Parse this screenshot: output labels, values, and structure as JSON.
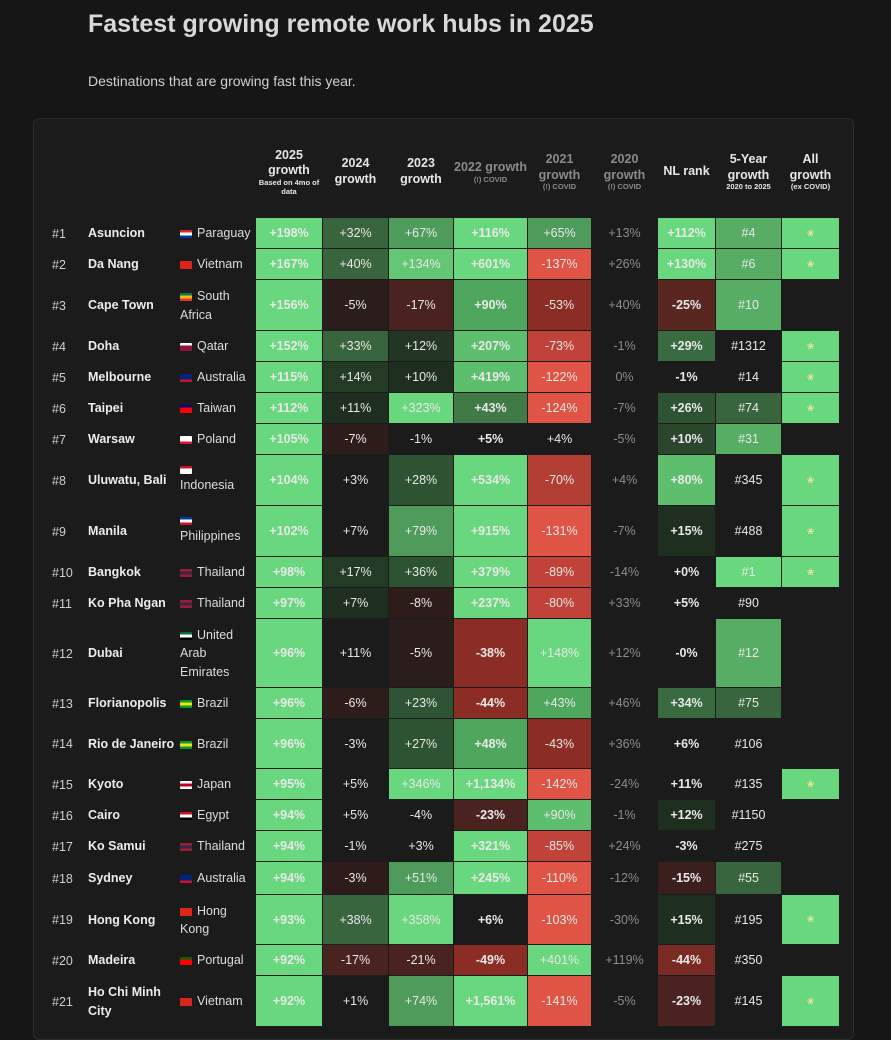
{
  "title": "Fastest growing remote work hubs in 2025",
  "subtitle": "Destinations that are growing fast this year.",
  "columns": [
    {
      "label": "2025 growth",
      "sub": "Based on 4mo of data",
      "dim": false
    },
    {
      "label": "2024 growth",
      "sub": "",
      "dim": false
    },
    {
      "label": "2023 growth",
      "sub": "",
      "dim": false
    },
    {
      "label": "2022 growth",
      "sub": "(!) COVID",
      "dim": true
    },
    {
      "label": "2021 growth",
      "sub": "(!) COVID",
      "dim": true
    },
    {
      "label": "2020 growth",
      "sub": "(!) COVID",
      "dim": true
    },
    {
      "label": "NL rank",
      "sub": "",
      "dim": false
    },
    {
      "label": "5-Year growth",
      "sub": "2020 to 2025",
      "dim": false
    },
    {
      "label": "All growth",
      "sub": "(ex COVID)",
      "dim": false
    }
  ],
  "rows": [
    {
      "rank": "#1",
      "city": "Asuncion",
      "country": "Paraguay",
      "flag": [
        "#d52b1e",
        "#ffffff",
        "#0038a8"
      ],
      "flag_top": false,
      "v": [
        "+198%",
        "+32%",
        "+67%",
        "+116%",
        "+65%",
        "+13%",
        "+112%",
        "#4"
      ],
      "badge": true
    },
    {
      "rank": "#2",
      "city": "Da Nang",
      "country": "Vietnam",
      "flag": [
        "#da251d",
        "#da251d",
        "#da251d"
      ],
      "flag_top": false,
      "v": [
        "+167%",
        "+40%",
        "+134%",
        "+601%",
        "-137%",
        "+26%",
        "+130%",
        "#6"
      ],
      "badge": true
    },
    {
      "rank": "#3",
      "city": "Cape Town",
      "country": "South Africa",
      "flag": [
        "#007a4d",
        "#ffb612",
        "#de3831"
      ],
      "flag_top": false,
      "v": [
        "+156%",
        "-5%",
        "-17%",
        "+90%",
        "-53%",
        "+40%",
        "-25%",
        "#10"
      ],
      "badge": false
    },
    {
      "rank": "#4",
      "city": "Doha",
      "country": "Qatar",
      "flag": [
        "#ffffff",
        "#8a1538",
        "#8a1538"
      ],
      "flag_top": false,
      "v": [
        "+152%",
        "+33%",
        "+12%",
        "+207%",
        "-73%",
        "-1%",
        "+29%",
        "#1312"
      ],
      "badge": true
    },
    {
      "rank": "#5",
      "city": "Melbourne",
      "country": "Australia",
      "flag": [
        "#00247d",
        "#00247d",
        "#cc142b"
      ],
      "flag_top": false,
      "v": [
        "+115%",
        "+14%",
        "+10%",
        "+419%",
        "-122%",
        "0%",
        "-1%",
        "#14"
      ],
      "badge": true
    },
    {
      "rank": "#6",
      "city": "Taipei",
      "country": "Taiwan",
      "flag": [
        "#000095",
        "#fe0000",
        "#fe0000"
      ],
      "flag_top": false,
      "v": [
        "+112%",
        "+11%",
        "+323%",
        "+43%",
        "-124%",
        "-7%",
        "+26%",
        "#74"
      ],
      "badge": true
    },
    {
      "rank": "#7",
      "city": "Warsaw",
      "country": "Poland",
      "flag": [
        "#ffffff",
        "#ffffff",
        "#dc143c"
      ],
      "flag_top": false,
      "v": [
        "+105%",
        "-7%",
        "-1%",
        "+5%",
        "+4%",
        "-5%",
        "+10%",
        "#31"
      ],
      "badge": false
    },
    {
      "rank": "#8",
      "city": "Uluwatu, Bali",
      "country": "Indonesia",
      "flag": [
        "#ce1126",
        "#ffffff",
        "#ffffff"
      ],
      "flag_top": true,
      "v": [
        "+104%",
        "+3%",
        "+28%",
        "+534%",
        "-70%",
        "+4%",
        "+80%",
        "#345"
      ],
      "badge": true
    },
    {
      "rank": "#9",
      "city": "Manila",
      "country": "Philippines",
      "flag": [
        "#0038a8",
        "#ffffff",
        "#ce1126"
      ],
      "flag_top": true,
      "v": [
        "+102%",
        "+7%",
        "+79%",
        "+915%",
        "-131%",
        "-7%",
        "+15%",
        "#488"
      ],
      "badge": true
    },
    {
      "rank": "#10",
      "city": "Bangkok",
      "country": "Thailand",
      "flag": [
        "#a51931",
        "#2d2a4a",
        "#a51931"
      ],
      "flag_top": false,
      "v": [
        "+98%",
        "+17%",
        "+36%",
        "+379%",
        "-89%",
        "-14%",
        "+0%",
        "#1"
      ],
      "badge": true
    },
    {
      "rank": "#11",
      "city": "Ko Pha Ngan",
      "country": "Thailand",
      "flag": [
        "#a51931",
        "#2d2a4a",
        "#a51931"
      ],
      "flag_top": false,
      "v": [
        "+97%",
        "+7%",
        "-8%",
        "+237%",
        "-80%",
        "+33%",
        "+5%",
        "#90"
      ],
      "badge": false
    },
    {
      "rank": "#12",
      "city": "Dubai",
      "country": "United Arab Emirates",
      "flag": [
        "#00732f",
        "#ffffff",
        "#000000"
      ],
      "flag_top": false,
      "v": [
        "+96%",
        "+11%",
        "-5%",
        "-38%",
        "+148%",
        "+12%",
        "-0%",
        "#12"
      ],
      "badge": false
    },
    {
      "rank": "#13",
      "city": "Florianopolis",
      "country": "Brazil",
      "flag": [
        "#009c3b",
        "#ffdf00",
        "#009c3b"
      ],
      "flag_top": false,
      "v": [
        "+96%",
        "-6%",
        "+23%",
        "-44%",
        "+43%",
        "+46%",
        "+34%",
        "#75"
      ],
      "badge": false
    },
    {
      "rank": "#14",
      "city": "Rio de Janeiro",
      "country": "Brazil",
      "flag": [
        "#009c3b",
        "#ffdf00",
        "#009c3b"
      ],
      "flag_top": false,
      "v": [
        "+96%",
        "-3%",
        "+27%",
        "+48%",
        "-43%",
        "+36%",
        "+6%",
        "#106"
      ],
      "badge": false
    },
    {
      "rank": "#15",
      "city": "Kyoto",
      "country": "Japan",
      "flag": [
        "#ffffff",
        "#bc002d",
        "#ffffff"
      ],
      "flag_top": false,
      "v": [
        "+95%",
        "+5%",
        "+346%",
        "+1,134%",
        "-142%",
        "-24%",
        "+11%",
        "#135"
      ],
      "badge": true
    },
    {
      "rank": "#16",
      "city": "Cairo",
      "country": "Egypt",
      "flag": [
        "#ce1126",
        "#ffffff",
        "#000000"
      ],
      "flag_top": false,
      "v": [
        "+94%",
        "+5%",
        "-4%",
        "-23%",
        "+90%",
        "-1%",
        "+12%",
        "#1150"
      ],
      "badge": false
    },
    {
      "rank": "#17",
      "city": "Ko Samui",
      "country": "Thailand",
      "flag": [
        "#a51931",
        "#2d2a4a",
        "#a51931"
      ],
      "flag_top": false,
      "v": [
        "+94%",
        "-1%",
        "+3%",
        "+321%",
        "-85%",
        "+24%",
        "-3%",
        "#275"
      ],
      "badge": false
    },
    {
      "rank": "#18",
      "city": "Sydney",
      "country": "Australia",
      "flag": [
        "#00247d",
        "#00247d",
        "#cc142b"
      ],
      "flag_top": false,
      "v": [
        "+94%",
        "-3%",
        "+51%",
        "+245%",
        "-110%",
        "-12%",
        "-15%",
        "#55"
      ],
      "badge": false
    },
    {
      "rank": "#19",
      "city": "Hong Kong",
      "country": "Hong Kong",
      "flag": [
        "#de2910",
        "#de2910",
        "#de2910"
      ],
      "flag_top": false,
      "v": [
        "+93%",
        "+38%",
        "+358%",
        "+6%",
        "-103%",
        "-30%",
        "+15%",
        "#195"
      ],
      "badge": true
    },
    {
      "rank": "#20",
      "city": "Madeira",
      "country": "Portugal",
      "flag": [
        "#006600",
        "#ff0000",
        "#ff0000"
      ],
      "flag_top": false,
      "v": [
        "+92%",
        "-17%",
        "-21%",
        "-49%",
        "+401%",
        "+119%",
        "-44%",
        "#350"
      ],
      "badge": false
    },
    {
      "rank": "#21",
      "city": "Ho Chi Minh City",
      "country": "Vietnam",
      "flag": [
        "#da251d",
        "#da251d",
        "#da251d"
      ],
      "flag_top": false,
      "v": [
        "+92%",
        "+1%",
        "+74%",
        "+1,561%",
        "-141%",
        "-5%",
        "-23%",
        "#145"
      ],
      "badge": true
    }
  ],
  "cell_colors": [
    [
      "#68d77d",
      "#38653d",
      "#4e9b5c",
      "#68d77d",
      "#4e9b5c",
      "",
      "#68d77d",
      "#56ad63"
    ],
    [
      "#68d77d",
      "#38653d",
      "#62c672",
      "#68d77d",
      "#df5445",
      "",
      "#68d77d",
      "#56ad63"
    ],
    [
      "#68d77d",
      "#2a1d1c",
      "#4a2320",
      "#4ea75c",
      "#8c2d25",
      "",
      "#5a2620",
      "#56ad63"
    ],
    [
      "#68d77d",
      "#38653d",
      "#233523",
      "#5dbe6e",
      "#c04238",
      "",
      "#3a6a40",
      ""
    ],
    [
      "#68d77d",
      "#233a24",
      "#1f2f1f",
      "#5dbe6e",
      "#df5445",
      "",
      "",
      ""
    ],
    [
      "#68d77d",
      "#1e2f1f",
      "#68d77d",
      "#3f7a47",
      "#df5445",
      "",
      "#2e5333",
      "#38653d"
    ],
    [
      "#68d77d",
      "#2e1c1b",
      "",
      "",
      "",
      "",
      "#2a472d",
      "#56ad63"
    ],
    [
      "#68d77d",
      "",
      "#2e5333",
      "#68d77d",
      "#b23d33",
      "",
      "#5dbe6e",
      ""
    ],
    [
      "#68d77d",
      "",
      "#4e9b5c",
      "#68d77d",
      "#df5445",
      "",
      "#1f2f1f",
      ""
    ],
    [
      "#68d77d",
      "#233a24",
      "#2e5333",
      "#68d77d",
      "#c04238",
      "",
      "",
      "#68d77d"
    ],
    [
      "#68d77d",
      "#1e2f1f",
      "#2e1c1b",
      "#68d77d",
      "#c04238",
      "",
      "",
      ""
    ],
    [
      "#68d77d",
      "",
      "#2b1d1c",
      "#8c2d25",
      "#68d77d",
      "",
      "",
      "#56ad63"
    ],
    [
      "#68d77d",
      "#2e1c1b",
      "#2f5434",
      "#8c2d25",
      "#4ea75c",
      "",
      "#3a6a40",
      "#38653d"
    ],
    [
      "#68d77d",
      "",
      "#2e5333",
      "#4ea75c",
      "#8c2d25",
      "",
      "",
      ""
    ],
    [
      "#68d77d",
      "",
      "#68d77d",
      "#68d77d",
      "#df5445",
      "",
      "",
      ""
    ],
    [
      "#68d77d",
      "",
      "",
      "#4a2320",
      "#5dbe6e",
      "",
      "#1f2f1f",
      ""
    ],
    [
      "#68d77d",
      "",
      "",
      "#68d77d",
      "#c04238",
      "",
      "",
      ""
    ],
    [
      "#68d77d",
      "#2e1c1b",
      "#4e9b5c",
      "#68d77d",
      "#df5445",
      "",
      "#3a1f1d",
      "#38653d"
    ],
    [
      "#68d77d",
      "#38653d",
      "#68d77d",
      "",
      "#df5445",
      "",
      "#1f2f1f",
      ""
    ],
    [
      "#68d77d",
      "#4a2320",
      "#4a2320",
      "#8c2d25",
      "#68d77d",
      "",
      "#7a2a24",
      ""
    ],
    [
      "#68d77d",
      "",
      "#4e9b5c",
      "#68d77d",
      "#df5445",
      "",
      "#4a2320",
      ""
    ]
  ],
  "badge_color": "#68d77d",
  "icons": {
    "badge": "leaf-badge-icon"
  }
}
